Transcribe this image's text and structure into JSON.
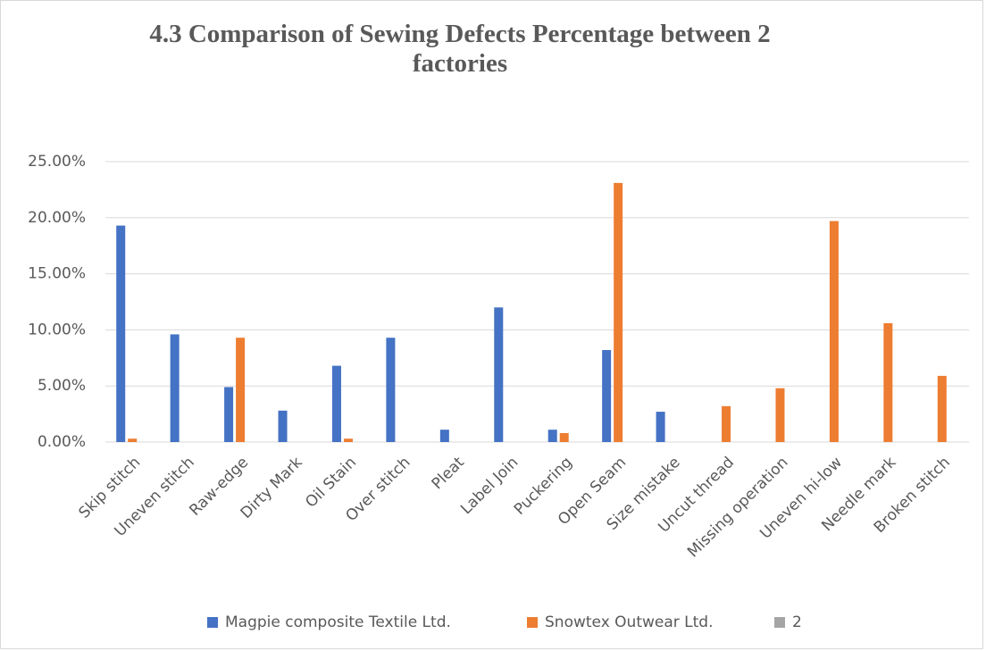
{
  "chart_data": {
    "type": "bar",
    "title": "4.3 Comparison of Sewing Defects Percentage between 2 factories",
    "categories": [
      "Skip stitch",
      "Uneven stitch",
      "Raw-edge",
      "Dirty Mark",
      "Oil Stain",
      "Over stitch",
      "Pleat",
      "Label Join",
      "Puckering",
      "Open Seam",
      "Size mistake",
      "Uncut thread",
      "Missing operation",
      "Uneven hi-low",
      "Needle mark",
      "Broken stitch"
    ],
    "series": [
      {
        "name": "Magpie composite Textile Ltd.",
        "color": "#4472c4",
        "values": [
          19.3,
          9.6,
          4.9,
          2.8,
          6.8,
          9.3,
          1.1,
          12.0,
          1.1,
          8.2,
          2.7,
          0,
          0,
          0,
          0,
          0
        ]
      },
      {
        "name": "Snowtex Outwear Ltd.",
        "color": "#ed7d31",
        "values": [
          0.3,
          0,
          9.3,
          0,
          0.3,
          0,
          0,
          0,
          0.8,
          23.1,
          0,
          3.2,
          4.8,
          19.7,
          10.6,
          5.9
        ]
      },
      {
        "name": "2",
        "color": "#a5a5a5",
        "values": [
          null,
          null,
          null,
          null,
          null,
          null,
          null,
          null,
          null,
          null,
          null,
          null,
          null,
          null,
          null,
          null
        ]
      }
    ],
    "ylim": [
      0,
      25
    ],
    "yticks": [
      {
        "value": 0,
        "label": "0.00%"
      },
      {
        "value": 5,
        "label": "5.00%"
      },
      {
        "value": 10,
        "label": "10.00%"
      },
      {
        "value": 15,
        "label": "15.00%"
      },
      {
        "value": 20,
        "label": "20.00%"
      },
      {
        "value": 25,
        "label": "25.00%"
      }
    ],
    "grid": true,
    "legend": "bottom"
  }
}
